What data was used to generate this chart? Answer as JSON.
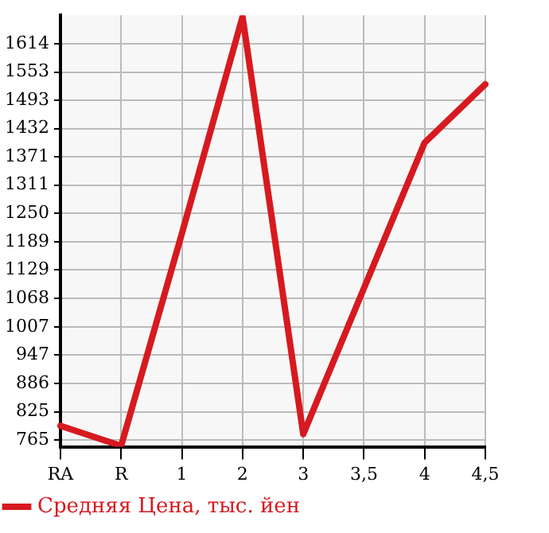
{
  "chart_data": {
    "type": "line",
    "categories": [
      "RA",
      "R",
      "1",
      "2",
      "3",
      "3,5",
      "4",
      "4,5"
    ],
    "series": [
      {
        "name": "Средняя Цена, тыс. йен",
        "color": "#d71920",
        "values": [
          795,
          752,
          1207,
          1672,
          777,
          1090,
          1402,
          1527
        ]
      }
    ],
    "ylim": [
      750,
      1675
    ],
    "yticks": [
      765,
      825,
      886,
      947,
      1007,
      1068,
      1129,
      1189,
      1250,
      1311,
      1371,
      1432,
      1493,
      1553,
      1614
    ],
    "grid": true,
    "legend": "bottom left",
    "marker": "none",
    "line_style": "solid"
  }
}
